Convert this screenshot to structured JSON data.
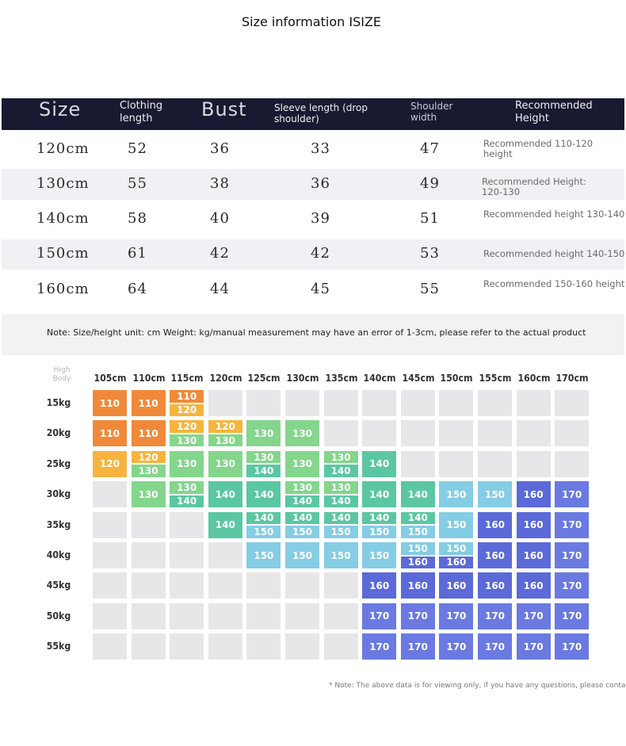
{
  "title": "Size information ISIZE",
  "size_table": {
    "headers": {
      "size": "Size",
      "clothing_length": "Clothing\nlength",
      "bust": "Bust",
      "sleeve": "Sleeve length (drop\nshoulder)",
      "shoulder": "Shoulder\nwidth",
      "recommended": "Recommended\nHeight"
    },
    "rows": [
      {
        "size": "120cm",
        "length": "52",
        "bust": "36",
        "sleeve": "33",
        "shoulder": "47",
        "recommended": "Recommended 110-120\nheight"
      },
      {
        "size": "130cm",
        "length": "55",
        "bust": "38",
        "sleeve": "36",
        "shoulder": "49",
        "recommended": "Recommended Height:\n120-130"
      },
      {
        "size": "140cm",
        "length": "58",
        "bust": "40",
        "sleeve": "39",
        "shoulder": "51",
        "recommended": "Recommended height 130-140"
      },
      {
        "size": "150cm",
        "length": "61",
        "bust": "42",
        "sleeve": "42",
        "shoulder": "53",
        "recommended": "Recommended height 140-150"
      },
      {
        "size": "160cm",
        "length": "64",
        "bust": "44",
        "sleeve": "45",
        "shoulder": "55",
        "recommended": "Recommended 150-160 height"
      }
    ]
  },
  "note": "Note: Size/height unit: cm Weight: kg/manual measurement may have an error of 1-3cm, please refer to the actual product",
  "matrix": {
    "corner_top": "High",
    "corner_bottom": "Body",
    "columns": [
      "105cm",
      "110cm",
      "115cm",
      "120cm",
      "125cm",
      "130cm",
      "135cm",
      "140cm",
      "145cm",
      "150cm",
      "155cm",
      "160cm",
      "170cm"
    ],
    "rows": [
      "15kg",
      "20kg",
      "25kg",
      "30kg",
      "35kg",
      "40kg",
      "45kg",
      "50kg",
      "55kg"
    ],
    "cells": [
      [
        [
          "110"
        ],
        [
          "110"
        ],
        [
          "110",
          "120"
        ],
        [],
        [],
        [],
        [],
        [],
        [],
        [],
        [],
        [],
        []
      ],
      [
        [
          "110"
        ],
        [
          "110"
        ],
        [
          "120",
          "130"
        ],
        [
          "120",
          "130"
        ],
        [
          "130"
        ],
        [
          "130"
        ],
        [],
        [],
        [],
        [],
        [],
        [],
        []
      ],
      [
        [
          "120"
        ],
        [
          "120",
          "130"
        ],
        [
          "130"
        ],
        [
          "130"
        ],
        [
          "130",
          "140"
        ],
        [
          "130"
        ],
        [
          "130",
          "140"
        ],
        [
          "140"
        ],
        [],
        [],
        [],
        [],
        []
      ],
      [
        [],
        [
          "130"
        ],
        [
          "130",
          "140"
        ],
        [
          "140"
        ],
        [
          "140"
        ],
        [
          "130",
          "140"
        ],
        [
          "130",
          "140"
        ],
        [
          "140"
        ],
        [
          "140"
        ],
        [
          "150"
        ],
        [
          "150"
        ],
        [
          "160"
        ],
        [
          "170"
        ]
      ],
      [
        [],
        [],
        [],
        [
          "140"
        ],
        [
          "140",
          "150"
        ],
        [
          "140",
          "150"
        ],
        [
          "140",
          "150"
        ],
        [
          "140",
          "150"
        ],
        [
          "140",
          "150"
        ],
        [
          "150"
        ],
        [
          "160"
        ],
        [
          "160"
        ],
        [
          "170"
        ]
      ],
      [
        [],
        [],
        [],
        [],
        [
          "150"
        ],
        [
          "150"
        ],
        [
          "150"
        ],
        [
          "150"
        ],
        [
          "150",
          "160"
        ],
        [
          "150",
          "160"
        ],
        [
          "160"
        ],
        [
          "160"
        ],
        [
          "170"
        ]
      ],
      [
        [],
        [],
        [],
        [],
        [],
        [],
        [],
        [
          "160"
        ],
        [
          "160"
        ],
        [
          "160"
        ],
        [
          "160"
        ],
        [
          "160"
        ],
        [
          "170"
        ]
      ],
      [
        [],
        [],
        [],
        [],
        [],
        [],
        [],
        [
          "170"
        ],
        [
          "170"
        ],
        [
          "170"
        ],
        [
          "170"
        ],
        [
          "170"
        ],
        [
          "170"
        ]
      ],
      [
        [],
        [],
        [],
        [],
        [],
        [],
        [],
        [
          "170"
        ],
        [
          "170"
        ],
        [
          "170"
        ],
        [
          "170"
        ],
        [
          "170"
        ],
        [
          "170"
        ]
      ]
    ],
    "size_colors": {
      "110": "#f08a3a",
      "120": "#f6b43f",
      "130": "#84d68c",
      "140": "#5bc7a2",
      "150": "#84cde4",
      "160": "#5b6ad8",
      "170": "#6a7ae0",
      "empty": "#e7e7e9"
    }
  },
  "footer_note": "* Note: The above data is for viewing only, if you have any questions, please contact Cu"
}
